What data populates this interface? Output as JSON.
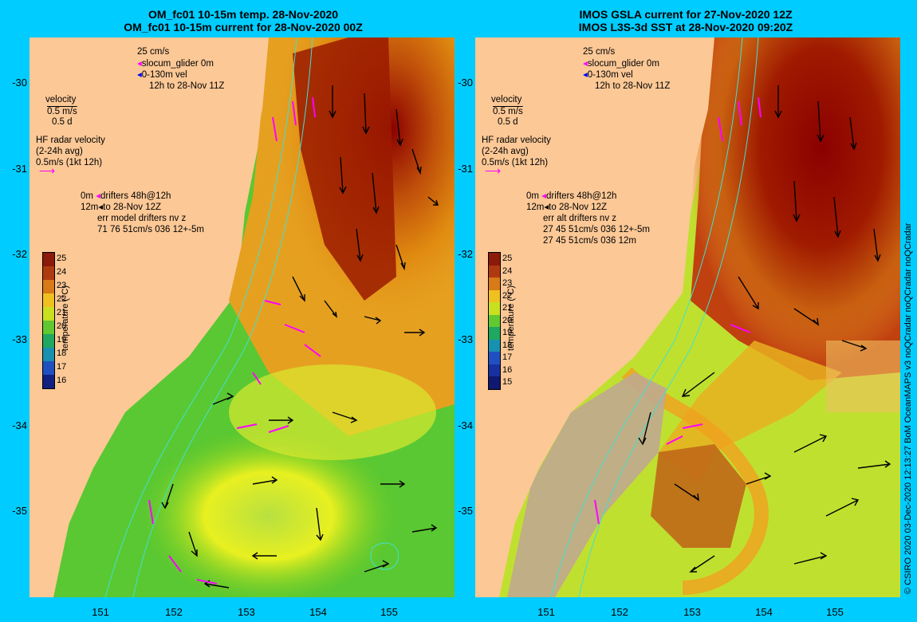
{
  "left_panel": {
    "title_line1": "OM_fc01 10-15m temp. 28-Nov-2020",
    "title_line2": "OM_fc01 10-15m current for 28-Nov-2020 00Z",
    "legend": {
      "scale": "25 cm/s",
      "glider": "slocum_glider 0m",
      "vel": "0-130m vel",
      "period": "12h to 28-Nov 11Z",
      "velocity": "velocity",
      "vel_scale": "0.5 m/s",
      "vel_days": "0.5 d",
      "hf1": "HF radar velocity",
      "hf2": "(2-24h avg)",
      "hf3": "0.5m/s (1kt 12h)",
      "d1a": "0m",
      "d1b": "drifters 48h@12h",
      "d2a": "12m",
      "d2b": "to 28-Nov 12Z",
      "d3": "err model drifters nv z",
      "d4": "71 76 51cm/s 036 12+-5m",
      "d5": ""
    }
  },
  "right_panel": {
    "title_line1": "IMOS GSLA current for 27-Nov-2020 12Z",
    "title_line2": "IMOS L3S-3d SST at 28-Nov-2020 09:20Z",
    "legend": {
      "scale": "25 cm/s",
      "glider": "slocum_glider 0m",
      "vel": "0-130m vel",
      "period": "12h to 28-Nov 11Z",
      "velocity": "velocity",
      "vel_scale": "0.5 m/s",
      "vel_days": "0.5 d",
      "hf1": "HF radar velocity",
      "hf2": "(2-24h avg)",
      "hf3": "0.5m/s (1kt 12h)",
      "d1a": "0m",
      "d1b": "drifters 48h@12h",
      "d2a": "12m",
      "d2b": "to 28-Nov 12Z",
      "d3": "err alt drifters nv z",
      "d4": "27 45 51cm/s 036 12+-5m",
      "d5": "27 45 51cm/s 036 12m"
    }
  },
  "axes": {
    "lat_ticks": [
      "-30",
      "-31",
      "-32",
      "-33",
      "-34",
      "-35"
    ],
    "lon_ticks": [
      "151",
      "152",
      "153",
      "154",
      "155"
    ]
  },
  "colorbar": {
    "title": "temperature (°C)",
    "left_labels": [
      "25",
      "24",
      "23",
      "22",
      "21",
      "20",
      "19",
      "18",
      "17",
      "16"
    ],
    "right_labels": [
      "25",
      "24",
      "23",
      "22",
      "21",
      "20",
      "19",
      "18",
      "17",
      "16",
      "15"
    ]
  },
  "credit": "© CSIRO 2020  03-Dec-2020 12:13:27 BoM OceanMAPS v3 noQCradar noQCradar noQCradar",
  "colors": {
    "background": "#00ccff",
    "land": "#fcc896",
    "warm": "#8b0000",
    "cool": "#33cc33",
    "drifter": "#ff00ff",
    "contour": "#40e0d0",
    "no_data": "#c0a890"
  }
}
